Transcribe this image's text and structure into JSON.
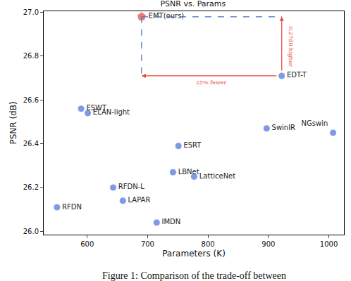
{
  "chart_data": {
    "type": "scatter",
    "title": "PSNR vs. Params",
    "x_label": "Parameters (K)",
    "y_label": "PSNR (dB)",
    "caption": "Figure 1: Comparison of the trade-off between",
    "points": [
      {
        "label": "EMT(ours)",
        "x": 690,
        "y": 26.98,
        "color": "#e8443a",
        "marker": "pentagon"
      },
      {
        "label": "EDT-T",
        "x": 922,
        "y": 26.71,
        "color": "#4a6fdc",
        "marker": "circle"
      },
      {
        "label": "ESWT",
        "x": 590,
        "y": 26.56,
        "color": "#4a6fdc",
        "marker": "circle"
      },
      {
        "label": "ELAN-light",
        "x": 601,
        "y": 26.54,
        "color": "#4a6fdc",
        "marker": "circle"
      },
      {
        "label": "SwinIR",
        "x": 897,
        "y": 26.47,
        "color": "#4a6fdc",
        "marker": "circle"
      },
      {
        "label": "NGswin",
        "x": 1007,
        "y": 26.45,
        "color": "#4a6fdc",
        "marker": "circle"
      },
      {
        "label": "ESRT",
        "x": 751,
        "y": 26.39,
        "color": "#4a6fdc",
        "marker": "circle"
      },
      {
        "label": "LBNet",
        "x": 742,
        "y": 26.27,
        "color": "#4a6fdc",
        "marker": "circle"
      },
      {
        "label": "LatticeNet",
        "x": 777,
        "y": 26.25,
        "color": "#4a6fdc",
        "marker": "circle"
      },
      {
        "label": "RFDN-L",
        "x": 643,
        "y": 26.2,
        "color": "#4a6fdc",
        "marker": "circle"
      },
      {
        "label": "LAPAR",
        "x": 659,
        "y": 26.14,
        "color": "#4a6fdc",
        "marker": "circle"
      },
      {
        "label": "RFDN",
        "x": 550,
        "y": 26.11,
        "color": "#4a6fdc",
        "marker": "circle"
      },
      {
        "label": "IMDN",
        "x": 715,
        "y": 26.04,
        "color": "#4a6fdc",
        "marker": "circle"
      }
    ],
    "comparison": {
      "from": "EDT-T",
      "to": "EMT(ours)",
      "y_note": "0.27dB higher",
      "x_note": "25% fewer",
      "color": "#e8443a"
    },
    "xlim": [
      528,
      1025
    ],
    "xticks": [
      600,
      700,
      800,
      900,
      1000
    ],
    "ylim": [
      25.985,
      27.005
    ],
    "yticks": [
      {
        "value": 26,
        "label": "26.0"
      },
      26.2,
      26.4,
      26.6,
      26.8,
      {
        "value": 27,
        "label": "27.0"
      }
    ],
    "grid": false
  }
}
